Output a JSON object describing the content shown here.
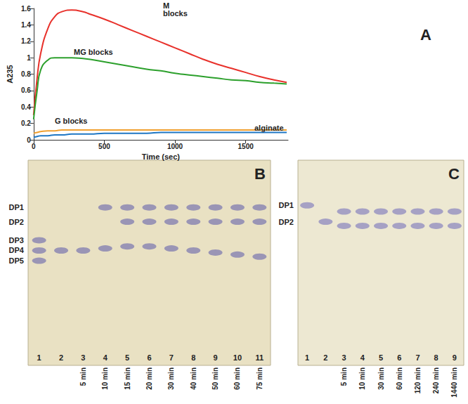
{
  "chart_data": [
    {
      "title": "A",
      "type": "line",
      "x_label": "Time (sec)",
      "y_label": "A235",
      "xlim": [
        0,
        1800
      ],
      "xticks": [
        0,
        500,
        1000,
        1500
      ],
      "ylim": [
        0,
        1.6
      ],
      "yticks": [
        0,
        0.2,
        0.4,
        0.6,
        0.8,
        1,
        1.2,
        1.4,
        1.6
      ],
      "grid": false,
      "x": [
        0,
        25,
        50,
        100,
        150,
        200,
        270,
        350,
        400,
        500,
        600,
        700,
        800,
        900,
        1000,
        1100,
        1200,
        1300,
        1400,
        1500,
        1600,
        1700,
        1790
      ],
      "series": [
        {
          "name": "M blocks",
          "color": "#e8312b",
          "values": [
            0.3,
            0.75,
            1.05,
            1.35,
            1.5,
            1.56,
            1.58,
            1.56,
            1.53,
            1.47,
            1.4,
            1.33,
            1.26,
            1.19,
            1.12,
            1.05,
            0.98,
            0.92,
            0.87,
            0.82,
            0.77,
            0.73,
            0.7
          ]
        },
        {
          "name": "MG blocks",
          "color": "#2ca02c",
          "values": [
            0.25,
            0.6,
            0.85,
            0.97,
            1.0,
            1.0,
            1.0,
            0.99,
            0.98,
            0.95,
            0.92,
            0.89,
            0.86,
            0.84,
            0.81,
            0.79,
            0.77,
            0.75,
            0.73,
            0.72,
            0.7,
            0.69,
            0.68
          ]
        },
        {
          "name": "G blocks",
          "color": "#f0a030",
          "values": [
            0.08,
            0.09,
            0.1,
            0.11,
            0.11,
            0.12,
            0.12,
            0.12,
            0.12,
            0.12,
            0.12,
            0.12,
            0.12,
            0.12,
            0.12,
            0.12,
            0.12,
            0.12,
            0.12,
            0.12,
            0.12,
            0.12,
            0.12
          ]
        },
        {
          "name": "alginate",
          "color": "#1f77c4",
          "values": [
            0.03,
            0.04,
            0.05,
            0.05,
            0.06,
            0.06,
            0.07,
            0.07,
            0.07,
            0.08,
            0.08,
            0.08,
            0.08,
            0.09,
            0.09,
            0.09,
            0.09,
            0.09,
            0.09,
            0.09,
            0.09,
            0.09,
            0.09
          ]
        }
      ]
    },
    {
      "title": "B",
      "type": "scatter",
      "marker": "ellipse",
      "color": "#7f7bb0",
      "categories": [
        "1",
        "2",
        "3",
        "4",
        "5",
        "6",
        "7",
        "8",
        "9",
        "10",
        "11"
      ],
      "times": [
        null,
        null,
        "5 min",
        "10 min",
        "15 min",
        "20 min",
        "30 min",
        "40 min",
        "50 min",
        "60 min",
        "75 min"
      ],
      "ylim": [
        0,
        1
      ],
      "yticks": [
        {
          "value": 0.77,
          "label": "DP1"
        },
        {
          "value": 0.7,
          "label": "DP2"
        },
        {
          "value": 0.61,
          "label": "DP3"
        },
        {
          "value": 0.56,
          "label": "DP4"
        },
        {
          "value": 0.51,
          "label": "DP5"
        }
      ],
      "grid": false,
      "spots": [
        {
          "lane": "1",
          "y": 0.61
        },
        {
          "lane": "1",
          "y": 0.56
        },
        {
          "lane": "1",
          "y": 0.51
        },
        {
          "lane": "2",
          "y": 0.56
        },
        {
          "lane": "3",
          "y": 0.56
        },
        {
          "lane": "4",
          "y": 0.57
        },
        {
          "lane": "4",
          "y": 0.77
        },
        {
          "lane": "5",
          "y": 0.58
        },
        {
          "lane": "5",
          "y": 0.77
        },
        {
          "lane": "5",
          "y": 0.7
        },
        {
          "lane": "6",
          "y": 0.58
        },
        {
          "lane": "6",
          "y": 0.77
        },
        {
          "lane": "6",
          "y": 0.7
        },
        {
          "lane": "7",
          "y": 0.57
        },
        {
          "lane": "7",
          "y": 0.77
        },
        {
          "lane": "7",
          "y": 0.7
        },
        {
          "lane": "8",
          "y": 0.56
        },
        {
          "lane": "8",
          "y": 0.77
        },
        {
          "lane": "8",
          "y": 0.7
        },
        {
          "lane": "9",
          "y": 0.55
        },
        {
          "lane": "9",
          "y": 0.77
        },
        {
          "lane": "9",
          "y": 0.7
        },
        {
          "lane": "10",
          "y": 0.54
        },
        {
          "lane": "10",
          "y": 0.77
        },
        {
          "lane": "10",
          "y": 0.7
        },
        {
          "lane": "11",
          "y": 0.53
        },
        {
          "lane": "11",
          "y": 0.77
        },
        {
          "lane": "11",
          "y": 0.7
        }
      ]
    },
    {
      "title": "C",
      "type": "scatter",
      "marker": "ellipse",
      "color": "#8e8abf",
      "categories": [
        "1",
        "2",
        "3",
        "4",
        "5",
        "6",
        "7",
        "8",
        "9"
      ],
      "times": [
        null,
        null,
        "5 min",
        "10 min",
        "30 min",
        "60 min",
        "120 min",
        "240 min",
        "1440 min"
      ],
      "ylim": [
        0,
        1
      ],
      "yticks": [
        {
          "value": 0.78,
          "label": "DP1"
        },
        {
          "value": 0.7,
          "label": "DP2"
        }
      ],
      "grid": false,
      "spots": [
        {
          "lane": "1",
          "y": 0.78
        },
        {
          "lane": "2",
          "y": 0.7
        },
        {
          "lane": "3",
          "y": 0.75
        },
        {
          "lane": "3",
          "y": 0.68
        },
        {
          "lane": "4",
          "y": 0.75
        },
        {
          "lane": "4",
          "y": 0.68
        },
        {
          "lane": "5",
          "y": 0.75
        },
        {
          "lane": "5",
          "y": 0.68
        },
        {
          "lane": "6",
          "y": 0.75
        },
        {
          "lane": "6",
          "y": 0.68
        },
        {
          "lane": "7",
          "y": 0.75
        },
        {
          "lane": "7",
          "y": 0.68
        },
        {
          "lane": "8",
          "y": 0.75
        },
        {
          "lane": "8",
          "y": 0.68
        },
        {
          "lane": "9",
          "y": 0.75
        },
        {
          "lane": "9",
          "y": 0.68
        }
      ]
    }
  ]
}
